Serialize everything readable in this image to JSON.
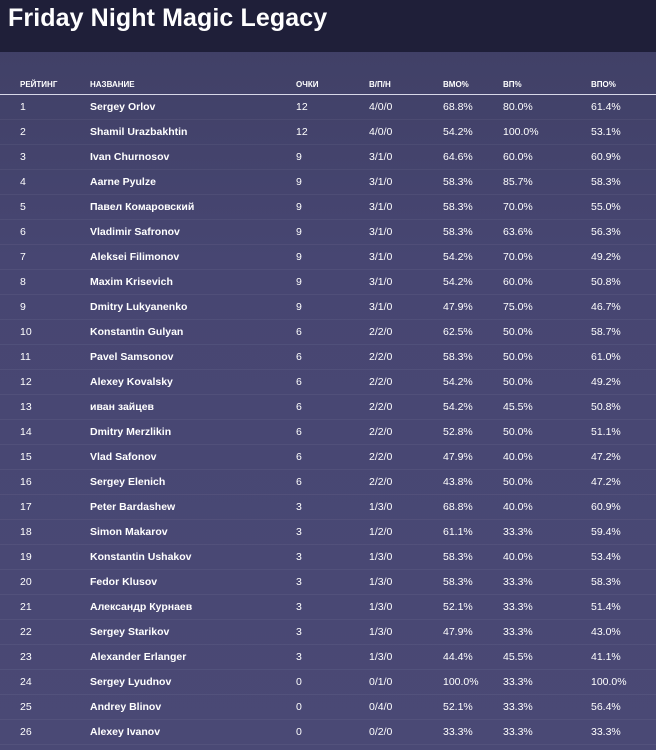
{
  "page": {
    "title": "Friday Night Magic Legacy"
  },
  "table": {
    "headers": {
      "rank": "РЕЙТИНГ",
      "name": "НАЗВАНИЕ",
      "points": "ОЧКИ",
      "wld": "В/П/Н",
      "omw": "ВМО%",
      "gw": "ВП%",
      "ogw": "ВПО%"
    },
    "rows": [
      {
        "rank": "1",
        "name": "Sergey Orlov",
        "points": "12",
        "wld": "4/0/0",
        "omw": "68.8%",
        "gw": "80.0%",
        "ogw": "61.4%"
      },
      {
        "rank": "2",
        "name": "Shamil Urazbakhtin",
        "points": "12",
        "wld": "4/0/0",
        "omw": "54.2%",
        "gw": "100.0%",
        "ogw": "53.1%"
      },
      {
        "rank": "3",
        "name": "Ivan Churnosov",
        "points": "9",
        "wld": "3/1/0",
        "omw": "64.6%",
        "gw": "60.0%",
        "ogw": "60.9%"
      },
      {
        "rank": "4",
        "name": "Aarne Pyulze",
        "points": "9",
        "wld": "3/1/0",
        "omw": "58.3%",
        "gw": "85.7%",
        "ogw": "58.3%"
      },
      {
        "rank": "5",
        "name": "Павел Комаровский",
        "points": "9",
        "wld": "3/1/0",
        "omw": "58.3%",
        "gw": "70.0%",
        "ogw": "55.0%"
      },
      {
        "rank": "6",
        "name": "Vladimir Safronov",
        "points": "9",
        "wld": "3/1/0",
        "omw": "58.3%",
        "gw": "63.6%",
        "ogw": "56.3%"
      },
      {
        "rank": "7",
        "name": "Aleksei Filimonov",
        "points": "9",
        "wld": "3/1/0",
        "omw": "54.2%",
        "gw": "70.0%",
        "ogw": "49.2%"
      },
      {
        "rank": "8",
        "name": "Maxim Krisevich",
        "points": "9",
        "wld": "3/1/0",
        "omw": "54.2%",
        "gw": "60.0%",
        "ogw": "50.8%"
      },
      {
        "rank": "9",
        "name": "Dmitry Lukyanenko",
        "points": "9",
        "wld": "3/1/0",
        "omw": "47.9%",
        "gw": "75.0%",
        "ogw": "46.7%"
      },
      {
        "rank": "10",
        "name": "Konstantin Gulyan",
        "points": "6",
        "wld": "2/2/0",
        "omw": "62.5%",
        "gw": "50.0%",
        "ogw": "58.7%"
      },
      {
        "rank": "11",
        "name": "Pavel Samsonov",
        "points": "6",
        "wld": "2/2/0",
        "omw": "58.3%",
        "gw": "50.0%",
        "ogw": "61.0%"
      },
      {
        "rank": "12",
        "name": "Alexey Kovalsky",
        "points": "6",
        "wld": "2/2/0",
        "omw": "54.2%",
        "gw": "50.0%",
        "ogw": "49.2%"
      },
      {
        "rank": "13",
        "name": "иван зайцев",
        "points": "6",
        "wld": "2/2/0",
        "omw": "54.2%",
        "gw": "45.5%",
        "ogw": "50.8%"
      },
      {
        "rank": "14",
        "name": "Dmitry Merzlikin",
        "points": "6",
        "wld": "2/2/0",
        "omw": "52.8%",
        "gw": "50.0%",
        "ogw": "51.1%"
      },
      {
        "rank": "15",
        "name": "Vlad Safonov",
        "points": "6",
        "wld": "2/2/0",
        "omw": "47.9%",
        "gw": "40.0%",
        "ogw": "47.2%"
      },
      {
        "rank": "16",
        "name": "Sergey Elenich",
        "points": "6",
        "wld": "2/2/0",
        "omw": "43.8%",
        "gw": "50.0%",
        "ogw": "47.2%"
      },
      {
        "rank": "17",
        "name": "Peter Bardashew",
        "points": "3",
        "wld": "1/3/0",
        "omw": "68.8%",
        "gw": "40.0%",
        "ogw": "60.9%"
      },
      {
        "rank": "18",
        "name": "Simon Makarov",
        "points": "3",
        "wld": "1/2/0",
        "omw": "61.1%",
        "gw": "33.3%",
        "ogw": "59.4%"
      },
      {
        "rank": "19",
        "name": "Konstantin Ushakov",
        "points": "3",
        "wld": "1/3/0",
        "omw": "58.3%",
        "gw": "40.0%",
        "ogw": "53.4%"
      },
      {
        "rank": "20",
        "name": "Fedor Klusov",
        "points": "3",
        "wld": "1/3/0",
        "omw": "58.3%",
        "gw": "33.3%",
        "ogw": "58.3%"
      },
      {
        "rank": "21",
        "name": "Александр Курнаев",
        "points": "3",
        "wld": "1/3/0",
        "omw": "52.1%",
        "gw": "33.3%",
        "ogw": "51.4%"
      },
      {
        "rank": "22",
        "name": "Sergey Starikov",
        "points": "3",
        "wld": "1/3/0",
        "omw": "47.9%",
        "gw": "33.3%",
        "ogw": "43.0%"
      },
      {
        "rank": "23",
        "name": "Alexander Erlanger",
        "points": "3",
        "wld": "1/3/0",
        "omw": "44.4%",
        "gw": "45.5%",
        "ogw": "41.1%"
      },
      {
        "rank": "24",
        "name": "Sergey Lyudnov",
        "points": "0",
        "wld": "0/1/0",
        "omw": "100.0%",
        "gw": "33.3%",
        "ogw": "100.0%"
      },
      {
        "rank": "25",
        "name": "Andrey Blinov",
        "points": "0",
        "wld": "0/4/0",
        "omw": "52.1%",
        "gw": "33.3%",
        "ogw": "56.4%"
      },
      {
        "rank": "26",
        "name": "Alexey Ivanov",
        "points": "0",
        "wld": "0/2/0",
        "omw": "33.3%",
        "gw": "33.3%",
        "ogw": "33.3%"
      }
    ]
  }
}
